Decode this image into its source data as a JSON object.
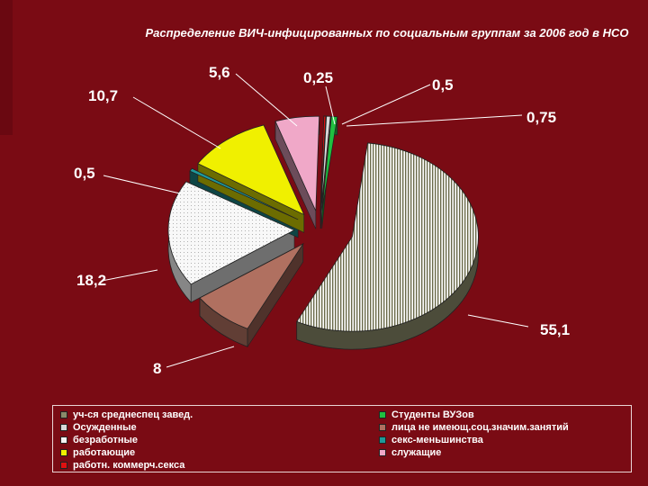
{
  "slide": {
    "background": "#7a0b14",
    "accent_band": "#6a0811"
  },
  "chart_data": {
    "type": "pie",
    "title": "Распределение ВИЧ-инфицированных по социальным группам за 2006 год в НСО",
    "slices": [
      {
        "name": "уч-ся среднеспец завед.",
        "value": 55.1,
        "label": "55,1",
        "color": "#8a8a6a"
      },
      {
        "name": "лица не имеющ.соц.значим.занятий",
        "value": 8,
        "label": "8",
        "color": "#b07060"
      },
      {
        "name": "безработные",
        "value": 18.2,
        "label": "18,2",
        "color": "#f4f4f4"
      },
      {
        "name": "секс-меньшинства",
        "value": 0.5,
        "label": "0,5",
        "color": "#1e9a9a"
      },
      {
        "name": "работающие",
        "value": 10.7,
        "label": "10,7",
        "color": "#f0f000"
      },
      {
        "name": "служащие",
        "value": 5.6,
        "label": "5,6",
        "color": "#f0a8c8"
      },
      {
        "name": "работн. коммерч.секса",
        "value": 0.25,
        "label": "0,25",
        "color": "#e01010"
      },
      {
        "name": "Осужденные",
        "value": 0.5,
        "label": "0,5",
        "color": "#d8d8d8"
      },
      {
        "name": "Студенты ВУЗов",
        "value": 0.75,
        "label": "0,75",
        "color": "#20c040"
      }
    ],
    "legend": {
      "placement": "bottom",
      "items": [
        {
          "label": "уч-ся среднеспец завед.",
          "color": "#8a8a6a"
        },
        {
          "label": "Студенты ВУЗов",
          "color": "#20c040"
        },
        {
          "label": "Осужденные",
          "color": "#d8d8d8"
        },
        {
          "label": "лица не имеющ.соц.значим.занятий",
          "color": "#b07060"
        },
        {
          "label": "безработные",
          "color": "#f4f4f4"
        },
        {
          "label": "секс-меньшинства",
          "color": "#1e9a9a"
        },
        {
          "label": "работающие",
          "color": "#f0f000"
        },
        {
          "label": "служащие",
          "color": "#f0a8c8"
        },
        {
          "label": "работн. коммерч.секса",
          "color": "#e01010"
        }
      ]
    }
  }
}
